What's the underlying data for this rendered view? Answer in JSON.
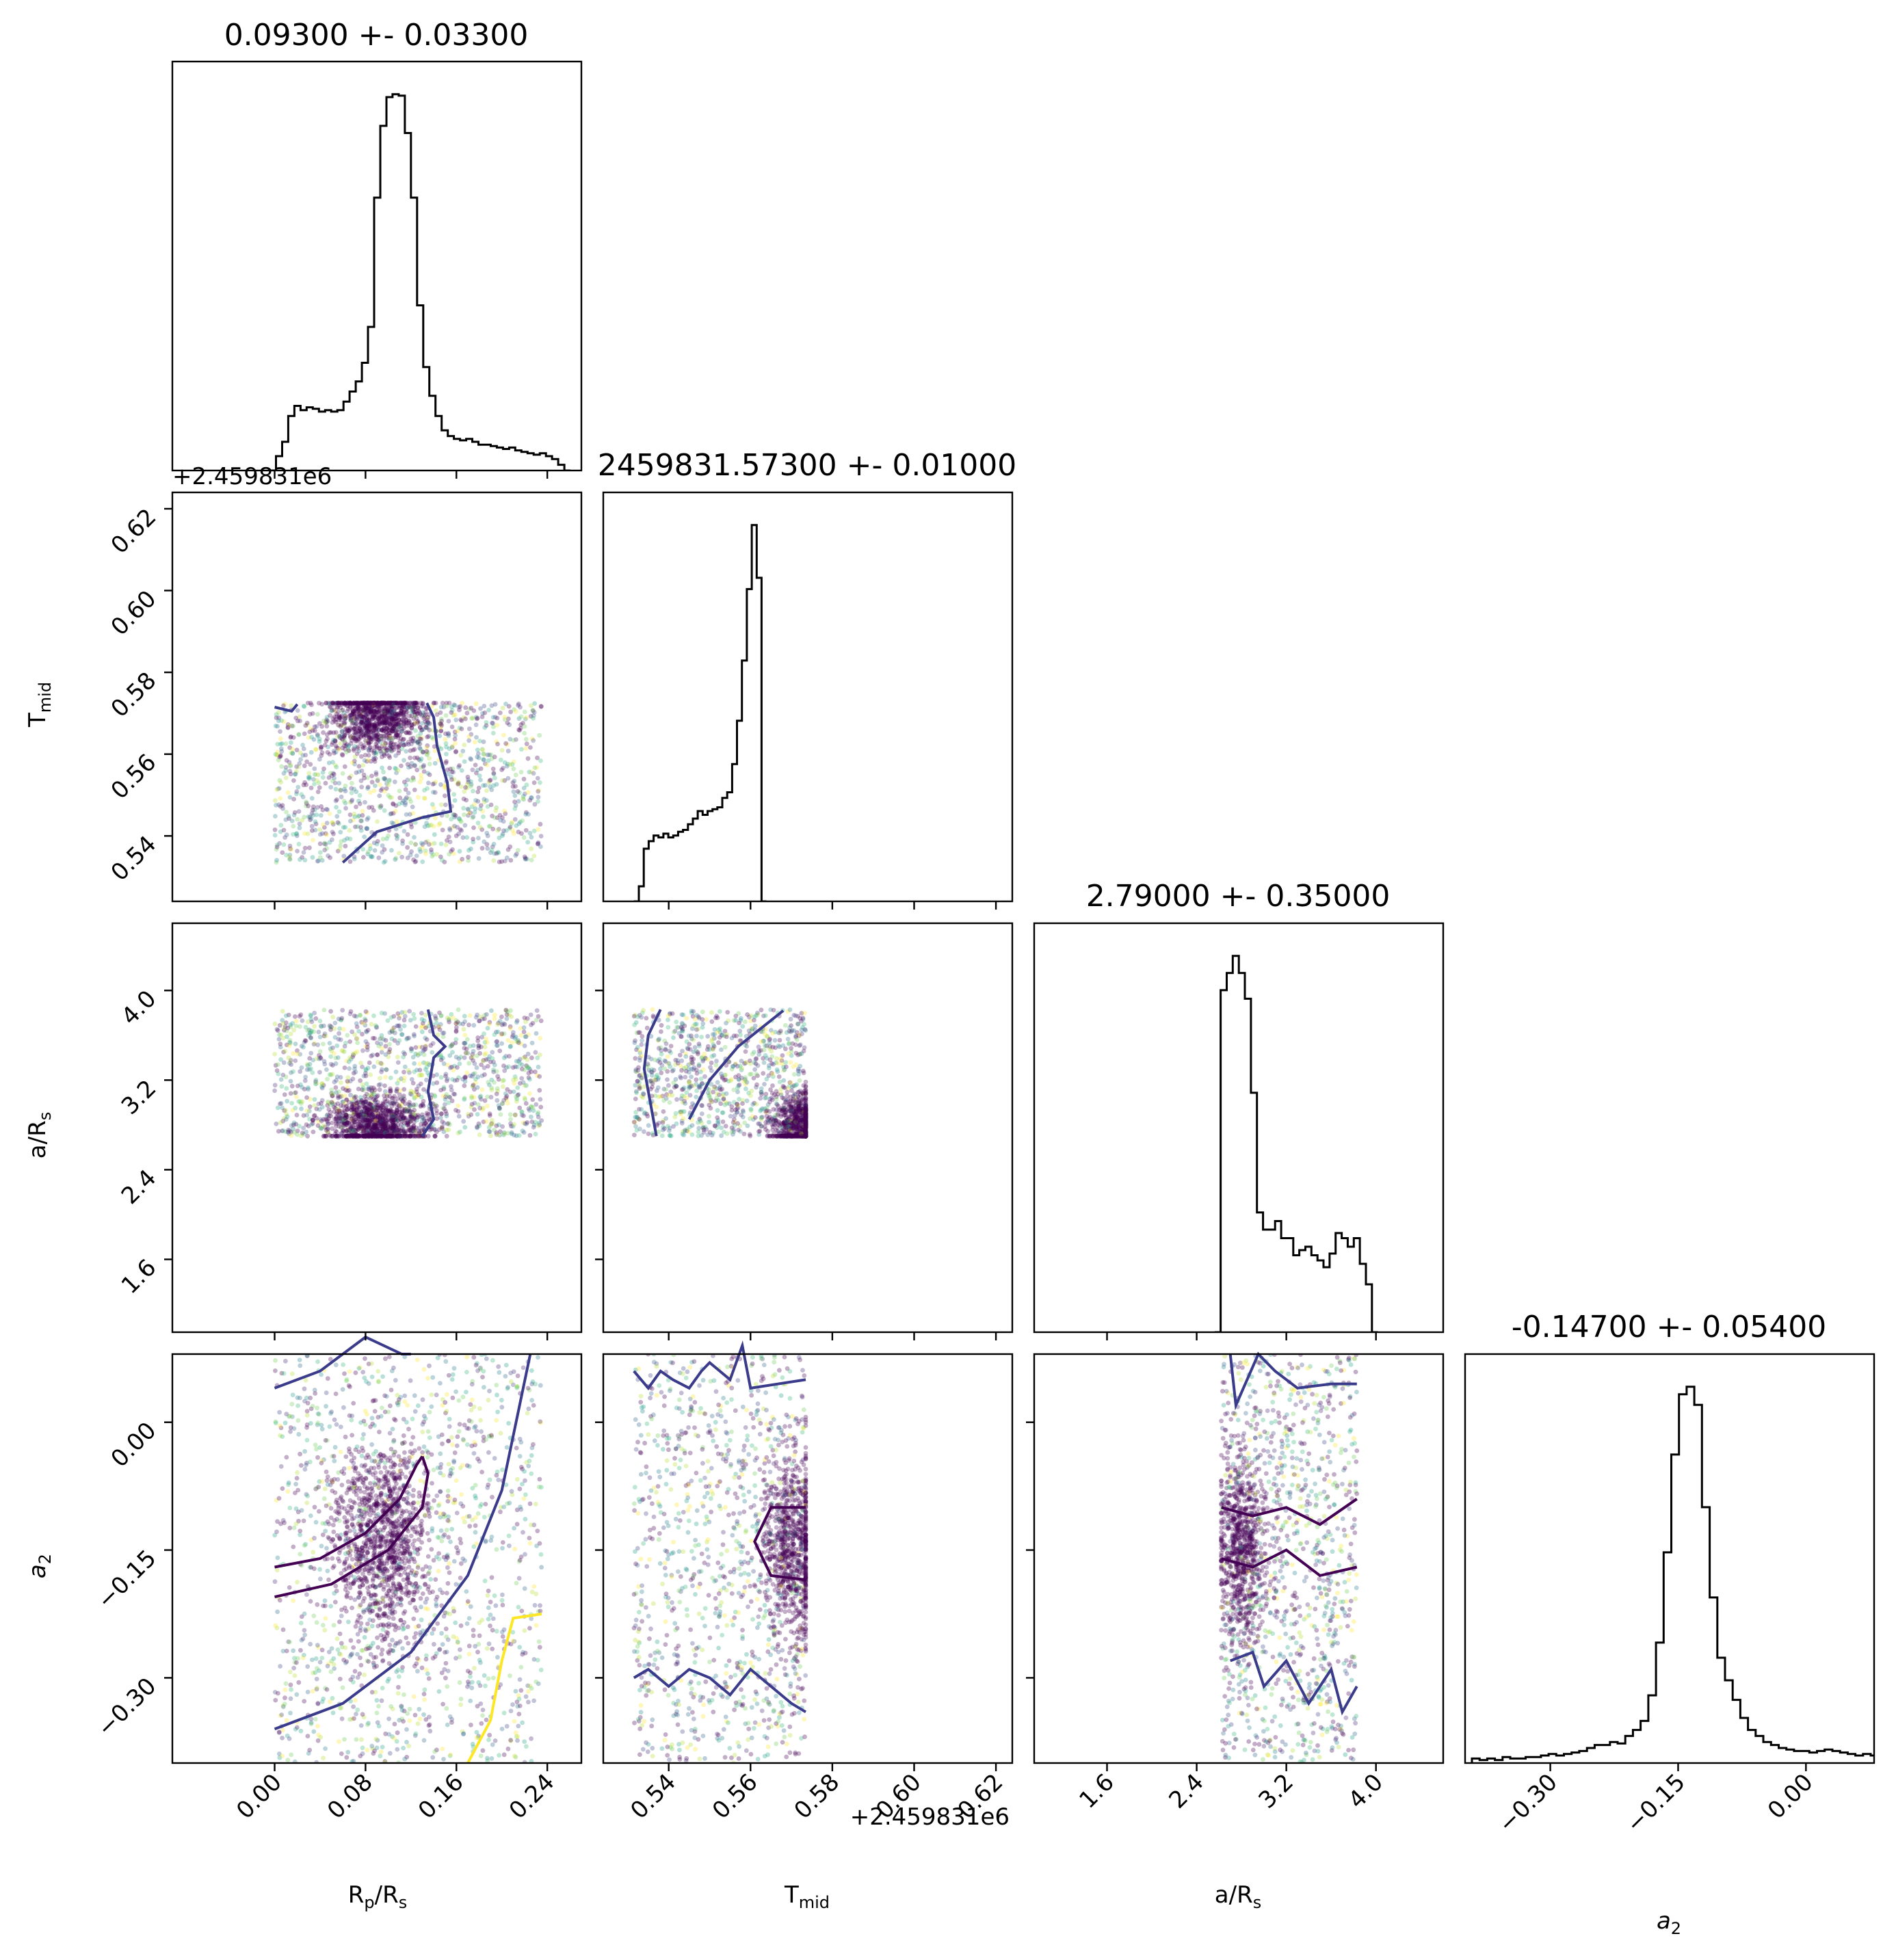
{
  "chart_data": {
    "type": "scatter",
    "description_kind": "corner plot of posterior samples",
    "parameters": [
      {
        "key": "rp",
        "label_main": "R",
        "label_sub": "p",
        "label_main2": "/R",
        "label_sub2": "s",
        "range": [
          -0.09,
          0.27
        ],
        "ticks": [
          0.0,
          0.08,
          0.16,
          0.24
        ],
        "tick_labels": [
          "0.00",
          "0.08",
          "0.16",
          "0.24"
        ]
      },
      {
        "key": "tmid",
        "label_main": "T",
        "label_sub": "mid",
        "range": [
          0.524,
          0.624
        ],
        "ticks": [
          0.54,
          0.56,
          0.58,
          0.6,
          0.62
        ],
        "tick_labels": [
          "0.54",
          "0.56",
          "0.58",
          "0.60",
          "0.62"
        ],
        "offset_text_y": "+2.459831e6",
        "offset_text_x": "+2.459831e6"
      },
      {
        "key": "ars",
        "label_main": "a/R",
        "label_sub": "s",
        "range": [
          0.95,
          4.6
        ],
        "ticks": [
          1.6,
          2.4,
          3.2,
          4.0
        ],
        "tick_labels": [
          "1.6",
          "2.4",
          "3.2",
          "4.0"
        ]
      },
      {
        "key": "a2",
        "label_main": "a",
        "label_sub": "2",
        "range": [
          -0.4,
          0.08
        ],
        "ticks": [
          -0.3,
          -0.15,
          0.0
        ],
        "tick_labels": [
          "−0.30",
          "−0.15",
          "0.00"
        ]
      }
    ],
    "titles": [
      "0.09300 +- 0.03300",
      "2459831.57300 +- 0.01000",
      "2.79000 +- 0.35000",
      "-0.14700 +- 0.05400"
    ],
    "histograms": [
      {
        "edges_start": -0.0042,
        "bin_width": 0.0054,
        "counts": [
          0,
          10,
          20,
          38,
          45,
          42,
          44,
          43,
          41,
          42,
          41,
          42,
          48,
          55,
          62,
          75,
          100,
          190,
          240,
          260,
          262,
          261,
          235,
          190,
          115,
          72,
          52,
          38,
          28,
          24,
          22,
          21,
          22,
          20,
          18,
          18,
          17,
          16,
          15,
          16,
          14,
          13,
          12,
          11,
          12,
          10,
          8,
          4,
          0
        ]
      },
      {
        "edges_start": 0.5315,
        "bin_width": 0.0012,
        "counts": [
          0,
          8,
          28,
          32,
          35,
          34,
          36,
          34,
          35,
          37,
          38,
          41,
          44,
          48,
          46,
          48,
          49,
          50,
          55,
          58,
          73,
          96,
          128,
          166,
          200,
          172,
          0
        ]
      },
      {
        "edges_start": 2.56,
        "bin_width": 0.054,
        "counts": [
          0,
          200,
          210,
          220,
          210,
          195,
          140,
          70,
          60,
          60,
          65,
          55,
          55,
          45,
          48,
          50,
          45,
          42,
          38,
          46,
          58,
          55,
          50,
          55,
          40,
          28,
          0
        ]
      },
      {
        "edges_start": -0.392,
        "bin_width": 0.009,
        "counts": [
          3,
          2,
          3,
          2,
          4,
          3,
          3,
          4,
          4,
          5,
          6,
          5,
          6,
          7,
          8,
          10,
          12,
          12,
          14,
          13,
          18,
          22,
          28,
          45,
          80,
          140,
          205,
          245,
          250,
          238,
          170,
          110,
          70,
          55,
          42,
          30,
          22,
          18,
          14,
          12,
          10,
          9,
          8,
          8,
          7,
          8,
          9,
          8,
          7,
          6,
          5,
          6,
          5,
          4,
          3
        ]
      }
    ],
    "scatter_pairs": [
      {
        "row": 1,
        "col": 0,
        "x_range": [
          0.0,
          0.235
        ],
        "y_range": [
          0.5335,
          0.5725
        ],
        "n_points": 2200,
        "dense_x": 0.09,
        "dense_y": 0.569
      },
      {
        "row": 2,
        "col": 0,
        "x_range": [
          0.0,
          0.235
        ],
        "y_range": [
          2.7,
          3.83
        ],
        "n_points": 2200,
        "dense_x": 0.09,
        "dense_y": 2.8
      },
      {
        "row": 2,
        "col": 1,
        "x_range": [
          0.5315,
          0.5735
        ],
        "y_range": [
          2.7,
          3.83
        ],
        "n_points": 1600,
        "dense_x": 0.572,
        "dense_y": 2.8
      },
      {
        "row": 3,
        "col": 0,
        "x_range": [
          0.0,
          0.235
        ],
        "y_range": [
          -0.4,
          0.08
        ],
        "n_points": 2400,
        "dense_x": 0.095,
        "dense_y": -0.14
      },
      {
        "row": 3,
        "col": 1,
        "x_range": [
          0.5315,
          0.5735
        ],
        "y_range": [
          -0.4,
          0.08
        ],
        "n_points": 1800,
        "dense_x": 0.57,
        "dense_y": -0.145
      },
      {
        "row": 3,
        "col": 2,
        "x_range": [
          2.62,
          3.83
        ],
        "y_range": [
          -0.4,
          0.08
        ],
        "n_points": 1800,
        "dense_x": 2.8,
        "dense_y": -0.145
      }
    ],
    "colors": {
      "contour": "#3b3b8c",
      "contour_inner": "#440154",
      "contour_yellow": "#fde725",
      "hist_line": "#000000"
    },
    "grid": false,
    "legend": "none"
  }
}
